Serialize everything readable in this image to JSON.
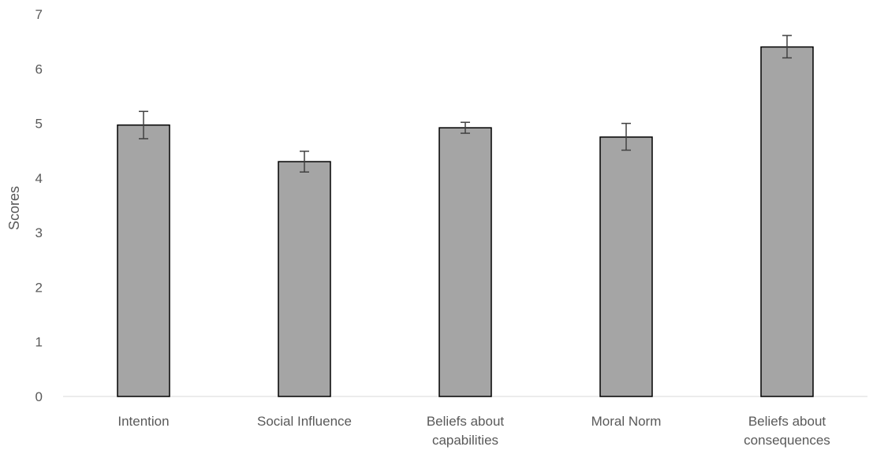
{
  "chart_data": {
    "type": "bar",
    "categories": [
      [
        "Intention"
      ],
      [
        "Social Influence"
      ],
      [
        "Beliefs about",
        "capabilities"
      ],
      [
        "Moral Norm"
      ],
      [
        "Beliefs about",
        "consequences"
      ]
    ],
    "values": [
      4.97,
      4.3,
      4.92,
      4.75,
      6.4
    ],
    "error_low": [
      4.72,
      4.11,
      4.82,
      4.51,
      6.2
    ],
    "error_high": [
      5.22,
      4.49,
      5.02,
      5.0,
      6.61
    ],
    "title": "",
    "xlabel": "",
    "ylabel": "Scores",
    "ylim": [
      0,
      7
    ],
    "yticks": [
      "0",
      "1",
      "2",
      "3",
      "4",
      "5",
      "6",
      "7"
    ],
    "grid": false,
    "legend": "none",
    "colors": {
      "bar_fill": "#a5a5a5",
      "bar_stroke": "#000000",
      "error": "#404040",
      "axis": "#d9d9d9",
      "text": "#595959"
    }
  }
}
